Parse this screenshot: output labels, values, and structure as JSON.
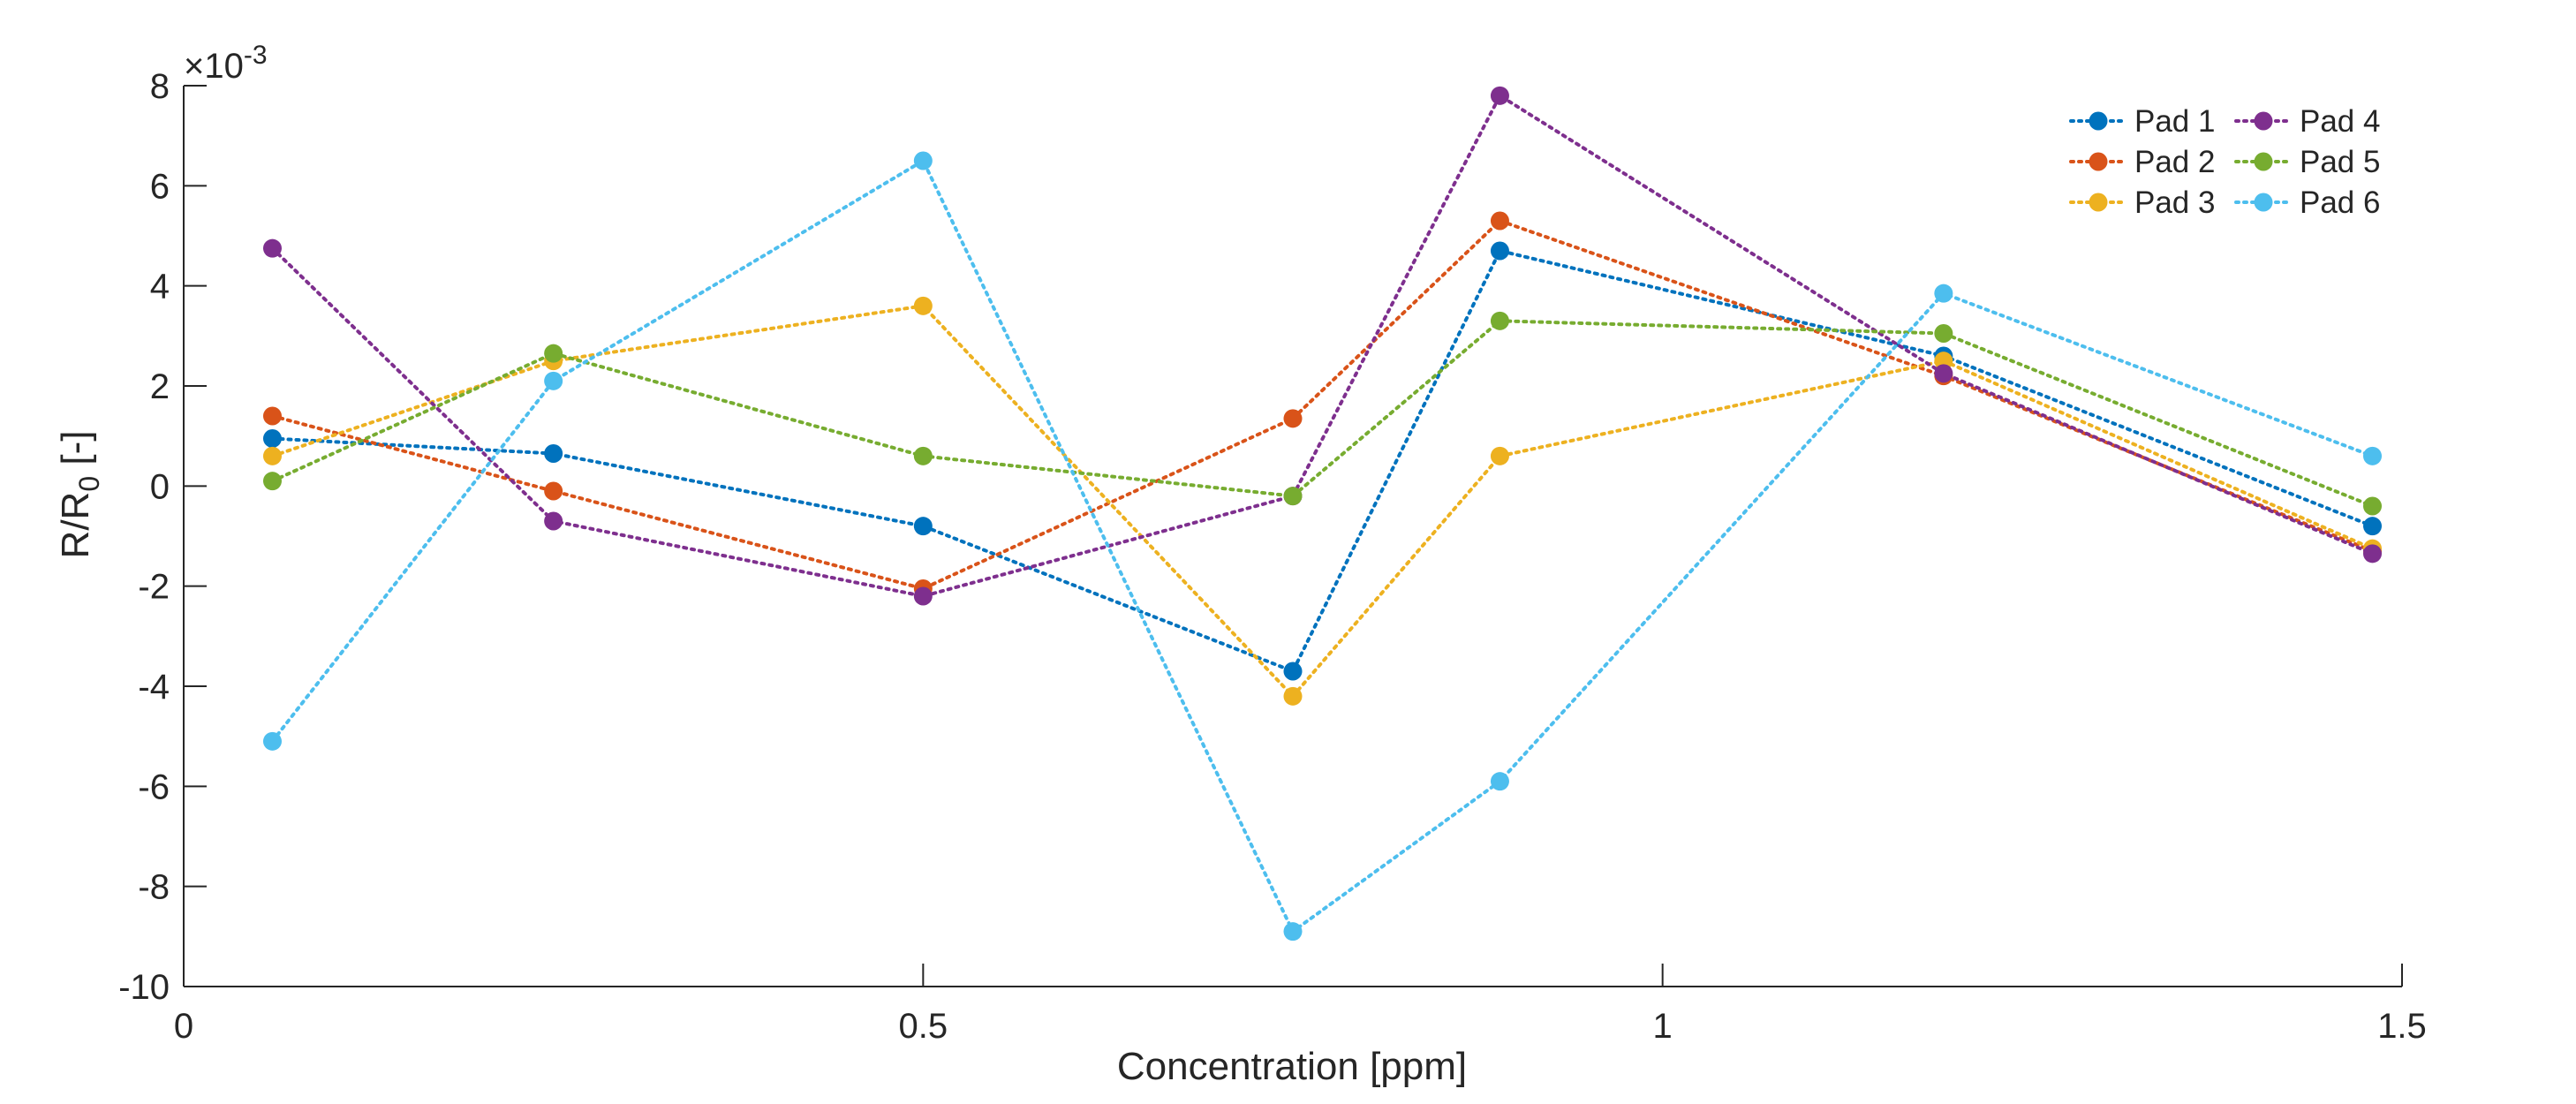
{
  "chart_data": {
    "type": "line",
    "xlabel": "Concentration [ppm]",
    "ylabel_main": "R/R",
    "ylabel_sub": "0",
    "ylabel_tail": " [-]",
    "y_exponent_base": "×10",
    "y_exponent_power": "-3",
    "xlim": [
      0,
      1.5
    ],
    "ylim": [
      -10,
      8
    ],
    "xticks": [
      0,
      0.5,
      1,
      1.5
    ],
    "xtick_labels": [
      "0",
      "0.5",
      "1",
      "1.5"
    ],
    "yticks": [
      -10,
      -8,
      -6,
      -4,
      -2,
      0,
      2,
      4,
      6,
      8
    ],
    "ytick_labels": [
      "-10",
      "-8",
      "-6",
      "-4",
      "-2",
      "0",
      "2",
      "4",
      "6",
      "8"
    ],
    "y_scale_note": "values ×10^-3",
    "grid": false,
    "legend_position": "top-right",
    "line_style": "dotted",
    "x": [
      0.06,
      0.25,
      0.5,
      0.75,
      0.89,
      1.19,
      1.48
    ],
    "series": [
      {
        "name": "Pad 1",
        "color": "#0072BD",
        "values": [
          0.95,
          0.65,
          -0.8,
          -3.7,
          4.7,
          2.6,
          -0.8
        ]
      },
      {
        "name": "Pad 2",
        "color": "#D95319",
        "values": [
          1.4,
          -0.1,
          -2.05,
          1.35,
          5.3,
          2.2,
          -1.3
        ]
      },
      {
        "name": "Pad 3",
        "color": "#EDB120",
        "values": [
          0.6,
          2.5,
          3.6,
          -4.2,
          0.6,
          2.5,
          -1.25
        ]
      },
      {
        "name": "Pad 4",
        "color": "#7E2F8E",
        "values": [
          4.75,
          -0.7,
          -2.2,
          -0.2,
          7.8,
          2.25,
          -1.35
        ]
      },
      {
        "name": "Pad 5",
        "color": "#77AC30",
        "values": [
          0.1,
          2.65,
          0.6,
          -0.2,
          3.3,
          3.05,
          -0.4
        ]
      },
      {
        "name": "Pad 6",
        "color": "#4DBEEE",
        "values": [
          -5.1,
          2.1,
          6.5,
          -8.9,
          -5.9,
          3.85,
          0.6
        ]
      }
    ]
  }
}
